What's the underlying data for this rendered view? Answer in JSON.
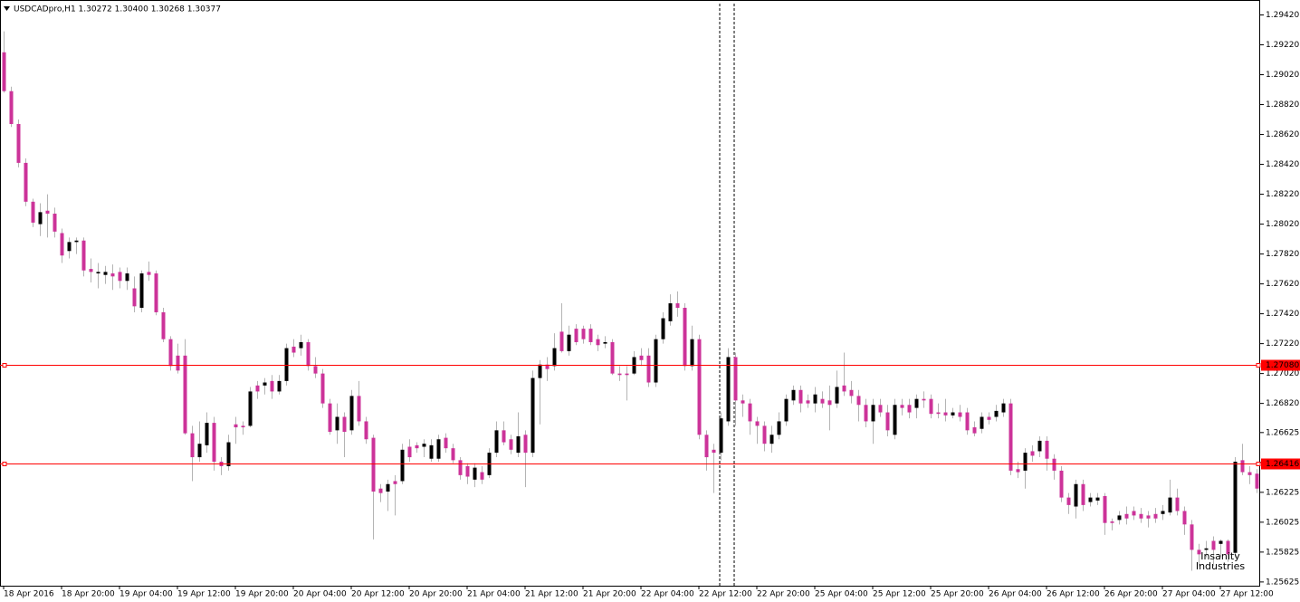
{
  "chart_data": {
    "type": "candlestick",
    "title": "USDCADpro,H1  1.30272 1.30400 1.30268 1.30377",
    "watermark": [
      "Insanity",
      "Industries"
    ],
    "up_color": "#000000",
    "down_color": "#cc3399",
    "wick_color": "#b4b4b4",
    "hline_color": "#ff0000",
    "ylim": [
      1.256,
      1.2952
    ],
    "yticks": [
      {
        "value": 1.2942,
        "label": "1.29420"
      },
      {
        "value": 1.2922,
        "label": "1.29220"
      },
      {
        "value": 1.2902,
        "label": "1.29020"
      },
      {
        "value": 1.2882,
        "label": "1.28820"
      },
      {
        "value": 1.2862,
        "label": "1.28620"
      },
      {
        "value": 1.2842,
        "label": "1.28420"
      },
      {
        "value": 1.2822,
        "label": "1.28220"
      },
      {
        "value": 1.2802,
        "label": "1.28020"
      },
      {
        "value": 1.2782,
        "label": "1.27820"
      },
      {
        "value": 1.2762,
        "label": "1.27620"
      },
      {
        "value": 1.2742,
        "label": "1.27420"
      },
      {
        "value": 1.2722,
        "label": "1.27220"
      },
      {
        "value": 1.2702,
        "label": "1.27020"
      },
      {
        "value": 1.2682,
        "label": "1.26820"
      },
      {
        "value": 1.26625,
        "label": "1.26625"
      },
      {
        "value": 1.26425,
        "label": "1.26425"
      },
      {
        "value": 1.26225,
        "label": "1.26225"
      },
      {
        "value": 1.26025,
        "label": "1.26025"
      },
      {
        "value": 1.25825,
        "label": "1.25825"
      },
      {
        "value": 1.25625,
        "label": "1.25625"
      }
    ],
    "hlines": [
      {
        "value": 1.2708,
        "label": "1.27080"
      },
      {
        "value": 1.26416,
        "label": "1.26416"
      }
    ],
    "categories": [
      "18 Apr 2016",
      null,
      null,
      null,
      null,
      null,
      null,
      null,
      "18 Apr 20:00",
      null,
      null,
      null,
      null,
      null,
      null,
      null,
      "19 Apr 04:00",
      null,
      null,
      null,
      null,
      null,
      null,
      null,
      "19 Apr 12:00",
      null,
      null,
      null,
      null,
      null,
      null,
      null,
      "19 Apr 20:00",
      null,
      null,
      null,
      null,
      null,
      null,
      null,
      "20 Apr 04:00",
      null,
      null,
      null,
      null,
      null,
      null,
      null,
      "20 Apr 12:00",
      null,
      null,
      null,
      null,
      null,
      null,
      null,
      "20 Apr 20:00",
      null,
      null,
      null,
      null,
      null,
      null,
      null,
      "21 Apr 04:00",
      null,
      null,
      null,
      null,
      null,
      null,
      null,
      "21 Apr 12:00",
      null,
      null,
      null,
      null,
      null,
      null,
      null,
      "21 Apr 20:00",
      null,
      null,
      null,
      null,
      null,
      null,
      null,
      "22 Apr 04:00",
      null,
      null,
      null,
      null,
      null,
      null,
      null,
      "22 Apr 12:00",
      null,
      null,
      null,
      null,
      null,
      null,
      null,
      "22 Apr 20:00",
      null,
      null,
      null,
      null,
      null,
      null,
      null,
      "25 Apr 04:00",
      null,
      null,
      null,
      null,
      null,
      null,
      null,
      "25 Apr 12:00",
      null,
      null,
      null,
      null,
      null,
      null,
      null,
      "25 Apr 20:00",
      null,
      null,
      null,
      null,
      null,
      null,
      null,
      "26 Apr 04:00",
      null,
      null,
      null,
      null,
      null,
      null,
      null,
      "26 Apr 12:00",
      null,
      null,
      null,
      null,
      null,
      null,
      null,
      "26 Apr 20:00",
      null,
      null,
      null,
      null,
      null,
      null,
      null,
      "27 Apr 04:00",
      null,
      null,
      null,
      null,
      null,
      null,
      null,
      "27 Apr 12:00",
      null,
      null,
      null,
      null,
      null
    ],
    "candles": [
      [
        1.2917,
        1.2931,
        1.289,
        1.2891
      ],
      [
        1.2891,
        1.2894,
        1.2867,
        1.2869
      ],
      [
        1.2869,
        1.2872,
        1.284,
        1.2843
      ],
      [
        1.2843,
        1.2846,
        1.2814,
        1.2817
      ],
      [
        1.2817,
        1.2819,
        1.28,
        1.2803
      ],
      [
        1.2802,
        1.2816,
        1.2794,
        1.281
      ],
      [
        1.2811,
        1.2822,
        1.2793,
        1.2809
      ],
      [
        1.2809,
        1.2813,
        1.2793,
        1.2797
      ],
      [
        1.2796,
        1.2799,
        1.2776,
        1.2781
      ],
      [
        1.2784,
        1.2793,
        1.2779,
        1.279
      ],
      [
        1.279,
        1.2793,
        1.2782,
        1.2791
      ],
      [
        1.2791,
        1.2793,
        1.2767,
        1.2771
      ],
      [
        1.2772,
        1.2779,
        1.2763,
        1.277
      ],
      [
        1.2769,
        1.2776,
        1.2759,
        1.277
      ],
      [
        1.2768,
        1.2774,
        1.2762,
        1.277
      ],
      [
        1.2769,
        1.2775,
        1.2758,
        1.2767
      ],
      [
        1.277,
        1.2773,
        1.2759,
        1.2764
      ],
      [
        1.2764,
        1.2773,
        1.2758,
        1.2769
      ],
      [
        1.2759,
        1.2767,
        1.2743,
        1.2747
      ],
      [
        1.2746,
        1.2771,
        1.2743,
        1.2769
      ],
      [
        1.277,
        1.2777,
        1.2764,
        1.2768
      ],
      [
        1.2769,
        1.2771,
        1.2741,
        1.2743
      ],
      [
        1.2743,
        1.2746,
        1.2723,
        1.2725
      ],
      [
        1.2725,
        1.2727,
        1.2704,
        1.2707
      ],
      [
        1.2714,
        1.2722,
        1.2702,
        1.2704
      ],
      [
        1.2714,
        1.2725,
        1.2661,
        1.2662
      ],
      [
        1.2662,
        1.2667,
        1.263,
        1.2646
      ],
      [
        1.2646,
        1.267,
        1.2643,
        1.2655
      ],
      [
        1.2654,
        1.2676,
        1.2649,
        1.2669
      ],
      [
        1.2669,
        1.2673,
        1.2637,
        1.2643
      ],
      [
        1.2643,
        1.2646,
        1.2634,
        1.264
      ],
      [
        1.264,
        1.2661,
        1.2637,
        1.2656
      ],
      [
        1.2668,
        1.2673,
        1.2655,
        1.2666
      ],
      [
        1.2667,
        1.267,
        1.2661,
        1.2666
      ],
      [
        1.2667,
        1.2693,
        1.2666,
        1.269
      ],
      [
        1.2694,
        1.2697,
        1.2685,
        1.269
      ],
      [
        1.2694,
        1.2699,
        1.2688,
        1.2696
      ],
      [
        1.2697,
        1.2701,
        1.2685,
        1.269
      ],
      [
        1.269,
        1.2701,
        1.2688,
        1.2697
      ],
      [
        1.2697,
        1.2722,
        1.2694,
        1.2719
      ],
      [
        1.272,
        1.2725,
        1.2713,
        1.2716
      ],
      [
        1.2719,
        1.2728,
        1.2714,
        1.2723
      ],
      [
        1.2723,
        1.2725,
        1.2704,
        1.2707
      ],
      [
        1.2707,
        1.2713,
        1.2699,
        1.2702
      ],
      [
        1.2702,
        1.2705,
        1.2679,
        1.2682
      ],
      [
        1.2682,
        1.2685,
        1.2661,
        1.2663
      ],
      [
        1.2664,
        1.2682,
        1.2655,
        1.2673
      ],
      [
        1.2673,
        1.2676,
        1.2646,
        1.2663
      ],
      [
        1.2664,
        1.2691,
        1.2661,
        1.2687
      ],
      [
        1.2687,
        1.2697,
        1.2667,
        1.267
      ],
      [
        1.267,
        1.2673,
        1.2655,
        1.2658
      ],
      [
        1.2659,
        1.2661,
        1.2591,
        1.2623
      ],
      [
        1.2625,
        1.2628,
        1.2616,
        1.2622
      ],
      [
        1.2623,
        1.2631,
        1.261,
        1.2628
      ],
      [
        1.263,
        1.2634,
        1.2607,
        1.2628
      ],
      [
        1.263,
        1.2655,
        1.2628,
        1.2651
      ],
      [
        1.2653,
        1.2658,
        1.2643,
        1.2646
      ],
      [
        1.2654,
        1.2656,
        1.2649,
        1.2652
      ],
      [
        1.2653,
        1.2658,
        1.2646,
        1.2655
      ],
      [
        1.2645,
        1.2658,
        1.2643,
        1.2654
      ],
      [
        1.2645,
        1.2661,
        1.2643,
        1.2658
      ],
      [
        1.2659,
        1.2662,
        1.2649,
        1.2652
      ],
      [
        1.2652,
        1.2655,
        1.2642,
        1.2644
      ],
      [
        1.2644,
        1.2646,
        1.2631,
        1.2634
      ],
      [
        1.264,
        1.2642,
        1.2628,
        1.2633
      ],
      [
        1.2631,
        1.2642,
        1.2626,
        1.2639
      ],
      [
        1.2636,
        1.264,
        1.2628,
        1.2631
      ],
      [
        1.2634,
        1.2652,
        1.2632,
        1.2649
      ],
      [
        1.2649,
        1.267,
        1.2646,
        1.2664
      ],
      [
        1.2664,
        1.267,
        1.2654,
        1.2656
      ],
      [
        1.2658,
        1.2661,
        1.2648,
        1.2651
      ],
      [
        1.2649,
        1.2676,
        1.2646,
        1.266
      ],
      [
        1.2661,
        1.2664,
        1.2626,
        1.2649
      ],
      [
        1.2649,
        1.2704,
        1.2646,
        1.2699
      ],
      [
        1.2699,
        1.2711,
        1.2668,
        1.2708
      ],
      [
        1.2708,
        1.2713,
        1.2697,
        1.2705
      ],
      [
        1.2707,
        1.2729,
        1.2704,
        1.2719
      ],
      [
        1.273,
        1.2749,
        1.2716,
        1.2717
      ],
      [
        1.2717,
        1.2734,
        1.2714,
        1.2728
      ],
      [
        1.2732,
        1.2735,
        1.2721,
        1.2723
      ],
      [
        1.2732,
        1.2734,
        1.2722,
        1.2725
      ],
      [
        1.2732,
        1.2735,
        1.2721,
        1.2723
      ],
      [
        1.2725,
        1.2728,
        1.2717,
        1.2721
      ],
      [
        1.2722,
        1.2727,
        1.2719,
        1.2723
      ],
      [
        1.2723,
        1.2725,
        1.2701,
        1.2702
      ],
      [
        1.2702,
        1.2707,
        1.2697,
        1.2701
      ],
      [
        1.2702,
        1.2707,
        1.2684,
        1.2701
      ],
      [
        1.2702,
        1.2717,
        1.2701,
        1.2713
      ],
      [
        1.2714,
        1.2719,
        1.2707,
        1.2711
      ],
      [
        1.2714,
        1.2719,
        1.2693,
        1.2696
      ],
      [
        1.2696,
        1.2728,
        1.2693,
        1.2725
      ],
      [
        1.2725,
        1.2743,
        1.2722,
        1.2739
      ],
      [
        1.2737,
        1.2755,
        1.2734,
        1.2749
      ],
      [
        1.2749,
        1.2757,
        1.274,
        1.2746
      ],
      [
        1.2746,
        1.2749,
        1.2704,
        1.2707
      ],
      [
        1.2707,
        1.2734,
        1.2704,
        1.2725
      ],
      [
        1.2725,
        1.2728,
        1.2658,
        1.2661
      ],
      [
        1.2661,
        1.2664,
        1.2637,
        1.2646
      ],
      [
        1.2651,
        1.2655,
        1.2622,
        1.2649
      ],
      [
        1.2649,
        1.2676,
        1.2644,
        1.2672
      ],
      [
        1.267,
        1.2719,
        1.2667,
        1.2713
      ],
      [
        1.2713,
        1.2716,
        1.2667,
        1.2684
      ],
      [
        1.2684,
        1.2688,
        1.2673,
        1.2682
      ],
      [
        1.2682,
        1.2685,
        1.2661,
        1.267
      ],
      [
        1.267,
        1.2673,
        1.2655,
        1.2667
      ],
      [
        1.2667,
        1.267,
        1.265,
        1.2655
      ],
      [
        1.2655,
        1.2667,
        1.2649,
        1.2661
      ],
      [
        1.2661,
        1.2676,
        1.2658,
        1.267
      ],
      [
        1.267,
        1.2688,
        1.2667,
        1.2685
      ],
      [
        1.2684,
        1.2694,
        1.2681,
        1.2691
      ],
      [
        1.2691,
        1.2694,
        1.2676,
        1.2682
      ],
      [
        1.2684,
        1.2688,
        1.2679,
        1.2682
      ],
      [
        1.2682,
        1.2693,
        1.2676,
        1.2688
      ],
      [
        1.2685,
        1.269,
        1.2679,
        1.2682
      ],
      [
        1.2684,
        1.2694,
        1.2664,
        1.2681
      ],
      [
        1.2682,
        1.2704,
        1.2679,
        1.2693
      ],
      [
        1.2694,
        1.2716,
        1.2687,
        1.269
      ],
      [
        1.2691,
        1.2697,
        1.2682,
        1.2687
      ],
      [
        1.2687,
        1.2691,
        1.267,
        1.2681
      ],
      [
        1.2681,
        1.2685,
        1.2666,
        1.267
      ],
      [
        1.267,
        1.2685,
        1.2655,
        1.2681
      ],
      [
        1.2681,
        1.2685,
        1.2673,
        1.2676
      ],
      [
        1.2676,
        1.2681,
        1.266,
        1.2664
      ],
      [
        1.2661,
        1.2685,
        1.2658,
        1.2681
      ],
      [
        1.2681,
        1.2685,
        1.2674,
        1.2679
      ],
      [
        1.2681,
        1.2685,
        1.2672,
        1.2676
      ],
      [
        1.2679,
        1.2688,
        1.2672,
        1.2685
      ],
      [
        1.2685,
        1.269,
        1.2679,
        1.2684
      ],
      [
        1.2685,
        1.2688,
        1.2672,
        1.2675
      ],
      [
        1.2676,
        1.2682,
        1.2672,
        1.2675
      ],
      [
        1.2676,
        1.2685,
        1.267,
        1.2674
      ],
      [
        1.2674,
        1.2679,
        1.2672,
        1.2676
      ],
      [
        1.2676,
        1.2681,
        1.267,
        1.2673
      ],
      [
        1.2676,
        1.2679,
        1.2661,
        1.2664
      ],
      [
        1.2666,
        1.267,
        1.266,
        1.2662
      ],
      [
        1.2665,
        1.2676,
        1.2662,
        1.2673
      ],
      [
        1.2673,
        1.2676,
        1.2668,
        1.2671
      ],
      [
        1.2673,
        1.2681,
        1.267,
        1.2677
      ],
      [
        1.2676,
        1.2685,
        1.2673,
        1.2682
      ],
      [
        1.2682,
        1.2685,
        1.2634,
        1.2637
      ],
      [
        1.2638,
        1.2643,
        1.2632,
        1.2636
      ],
      [
        1.2637,
        1.2652,
        1.2625,
        1.2649
      ],
      [
        1.265,
        1.2654,
        1.2643,
        1.2647
      ],
      [
        1.265,
        1.266,
        1.2646,
        1.2657
      ],
      [
        1.2657,
        1.266,
        1.2637,
        1.2645
      ],
      [
        1.2645,
        1.2648,
        1.2631,
        1.2637
      ],
      [
        1.2637,
        1.264,
        1.2616,
        1.2619
      ],
      [
        1.2619,
        1.2622,
        1.2608,
        1.2614
      ],
      [
        1.2613,
        1.2631,
        1.2605,
        1.2628
      ],
      [
        1.2628,
        1.2631,
        1.261,
        1.2614
      ],
      [
        1.2616,
        1.2622,
        1.2613,
        1.2619
      ],
      [
        1.2617,
        1.2622,
        1.2614,
        1.2619
      ],
      [
        1.262,
        1.2622,
        1.2594,
        1.2602
      ],
      [
        1.2603,
        1.2605,
        1.2597,
        1.2602
      ],
      [
        1.2604,
        1.261,
        1.2601,
        1.2607
      ],
      [
        1.2608,
        1.2613,
        1.2601,
        1.2605
      ],
      [
        1.261,
        1.2613,
        1.2604,
        1.2607
      ],
      [
        1.2608,
        1.2612,
        1.2602,
        1.2605
      ],
      [
        1.2607,
        1.261,
        1.2599,
        1.2605
      ],
      [
        1.2608,
        1.2612,
        1.2602,
        1.2605
      ],
      [
        1.2608,
        1.2614,
        1.2604,
        1.261
      ],
      [
        1.2609,
        1.2631,
        1.2607,
        1.2619
      ],
      [
        1.2619,
        1.2625,
        1.2607,
        1.261
      ],
      [
        1.261,
        1.2613,
        1.2594,
        1.2601
      ],
      [
        1.2601,
        1.2604,
        1.257,
        1.2584
      ],
      [
        1.2584,
        1.2588,
        1.2573,
        1.2581
      ],
      [
        1.2584,
        1.259,
        1.2579,
        1.2585
      ],
      [
        1.259,
        1.2593,
        1.2573,
        1.2584
      ],
      [
        1.2588,
        1.2591,
        1.2579,
        1.259
      ],
      [
        1.259,
        1.2591,
        1.2576,
        1.2581
      ],
      [
        1.2582,
        1.2646,
        1.2579,
        1.2643
      ],
      [
        1.2644,
        1.2655,
        1.2634,
        1.2636
      ],
      [
        1.2636,
        1.264,
        1.2628,
        1.2634
      ],
      [
        1.2635,
        1.2638,
        1.2622,
        1.2625
      ]
    ]
  }
}
